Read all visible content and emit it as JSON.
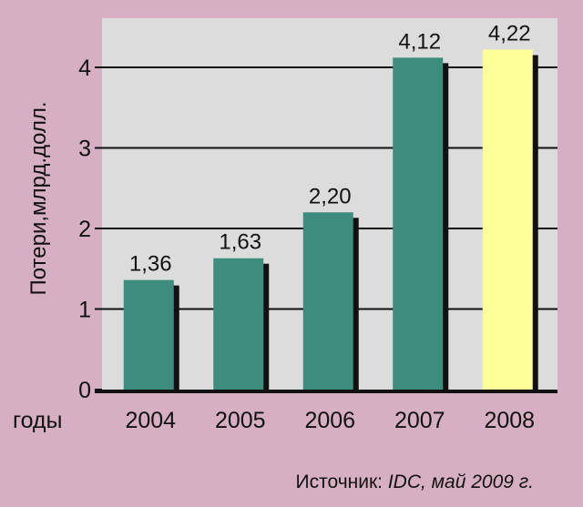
{
  "colors": {
    "background": "#d7afc2",
    "plot_area": "#dcdcdc",
    "bar": "#3d8c7d",
    "highlight_bar": "#ffff99",
    "shadow": "#111111"
  },
  "chart_data": {
    "type": "bar",
    "categories": [
      "2004",
      "2005",
      "2006",
      "2007",
      "2008"
    ],
    "values": [
      1.36,
      1.63,
      2.2,
      4.12,
      4.22
    ],
    "data_labels": [
      "1,36",
      "1,63",
      "2,20",
      "4,12",
      "4,22"
    ],
    "highlight_index": 4,
    "ylabel": "Потери,млрд.долл.",
    "xlabel": "годы",
    "ylim": [
      0,
      4.5
    ],
    "yticks": [
      0,
      1,
      2,
      3,
      4
    ],
    "grid": true
  },
  "source": {
    "prefix": "Источник: ",
    "text": "IDC, май 2009 г."
  }
}
